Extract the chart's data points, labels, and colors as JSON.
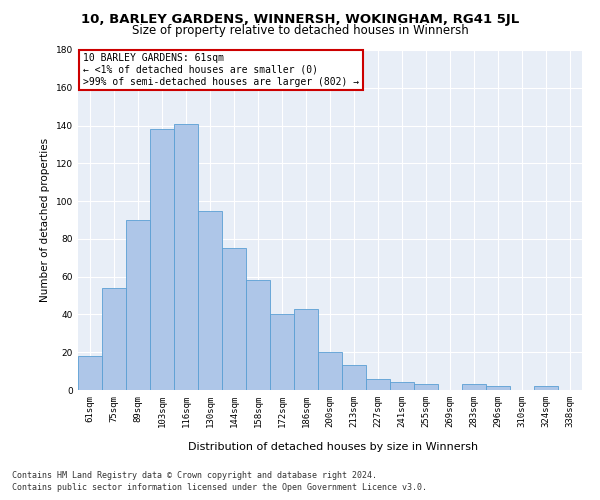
{
  "title": "10, BARLEY GARDENS, WINNERSH, WOKINGHAM, RG41 5JL",
  "subtitle": "Size of property relative to detached houses in Winnersh",
  "xlabel": "Distribution of detached houses by size in Winnersh",
  "ylabel": "Number of detached properties",
  "categories": [
    "61sqm",
    "75sqm",
    "89sqm",
    "103sqm",
    "116sqm",
    "130sqm",
    "144sqm",
    "158sqm",
    "172sqm",
    "186sqm",
    "200sqm",
    "213sqm",
    "227sqm",
    "241sqm",
    "255sqm",
    "269sqm",
    "283sqm",
    "296sqm",
    "310sqm",
    "324sqm",
    "338sqm"
  ],
  "values": [
    18,
    54,
    90,
    138,
    141,
    95,
    75,
    58,
    40,
    43,
    20,
    13,
    6,
    4,
    3,
    0,
    3,
    2,
    0,
    2,
    0
  ],
  "bar_color": "#aec6e8",
  "bar_edge_color": "#5a9fd4",
  "annotation_title": "10 BARLEY GARDENS: 61sqm",
  "annotation_line1": "← <1% of detached houses are smaller (0)",
  "annotation_line2": ">99% of semi-detached houses are larger (802) →",
  "annotation_box_color": "#ffffff",
  "annotation_box_edge": "#cc0000",
  "ylim": [
    0,
    180
  ],
  "yticks": [
    0,
    20,
    40,
    60,
    80,
    100,
    120,
    140,
    160,
    180
  ],
  "background_color": "#e8eef7",
  "footer1": "Contains HM Land Registry data © Crown copyright and database right 2024.",
  "footer2": "Contains public sector information licensed under the Open Government Licence v3.0.",
  "title_fontsize": 9.5,
  "subtitle_fontsize": 8.5,
  "xlabel_fontsize": 8,
  "ylabel_fontsize": 7.5,
  "tick_fontsize": 6.5,
  "annotation_fontsize": 7,
  "footer_fontsize": 6
}
